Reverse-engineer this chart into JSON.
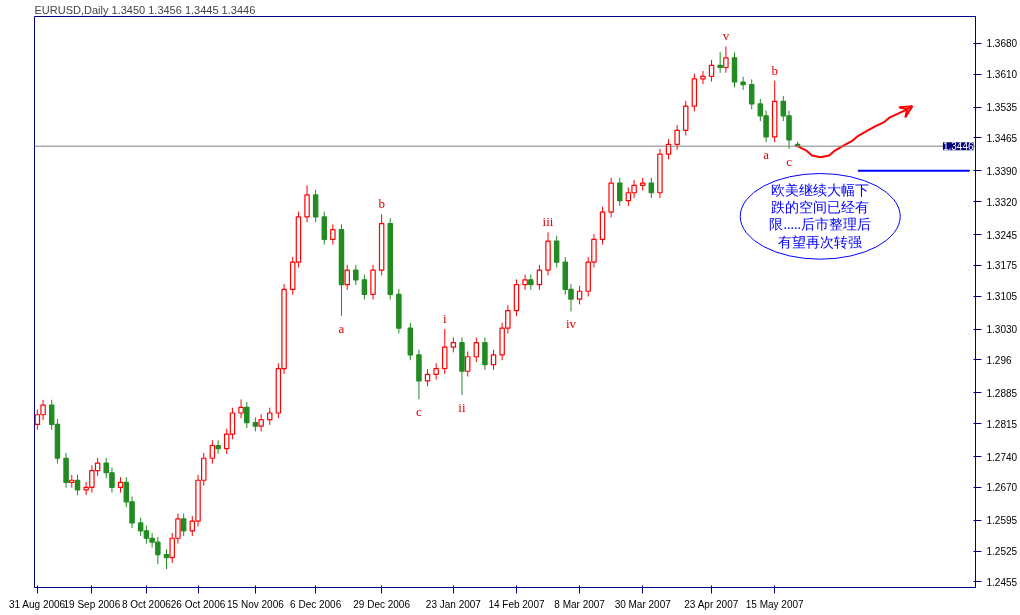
{
  "chart_data": {
    "type": "candlestick",
    "title": "EURUSD,Daily  1.3450 1.3456 1.3445 1.3446",
    "x": [
      "2006-08-31",
      "2006-09-02",
      "2006-09-05",
      "2006-09-07",
      "2006-09-10",
      "2006-09-12",
      "2006-09-14",
      "2006-09-17",
      "2006-09-19",
      "2006-09-21",
      "2006-09-24",
      "2006-09-26",
      "2006-09-29",
      "2006-10-01",
      "2006-10-03",
      "2006-10-06",
      "2006-10-08",
      "2006-10-10",
      "2006-10-12",
      "2006-10-15",
      "2006-10-17",
      "2006-10-19",
      "2006-10-21",
      "2006-10-24",
      "2006-10-26",
      "2006-10-28",
      "2006-10-31",
      "2006-11-02",
      "2006-11-05",
      "2006-11-07",
      "2006-11-10",
      "2006-11-12",
      "2006-11-15",
      "2006-11-17",
      "2006-11-20",
      "2006-11-23",
      "2006-11-25",
      "2006-11-28",
      "2006-11-30",
      "2006-12-03",
      "2006-12-06",
      "2006-12-09",
      "2006-12-12",
      "2006-12-15",
      "2006-12-17",
      "2006-12-20",
      "2006-12-23",
      "2006-12-26",
      "2006-12-29",
      "2007-01-01",
      "2007-01-04",
      "2007-01-08",
      "2007-01-11",
      "2007-01-14",
      "2007-01-17",
      "2007-01-20",
      "2007-01-23",
      "2007-01-26",
      "2007-01-28",
      "2007-01-31",
      "2007-02-03",
      "2007-02-06",
      "2007-02-09",
      "2007-02-11",
      "2007-02-14",
      "2007-02-17",
      "2007-02-19",
      "2007-02-22",
      "2007-02-25",
      "2007-02-28",
      "2007-03-03",
      "2007-03-05",
      "2007-03-08",
      "2007-03-11",
      "2007-03-13",
      "2007-03-16",
      "2007-03-19",
      "2007-03-22",
      "2007-03-25",
      "2007-03-27",
      "2007-03-30",
      "2007-04-02",
      "2007-04-05",
      "2007-04-08",
      "2007-04-11",
      "2007-04-14",
      "2007-04-17",
      "2007-04-20",
      "2007-04-23",
      "2007-04-26",
      "2007-04-28",
      "2007-05-01",
      "2007-05-04",
      "2007-05-07",
      "2007-05-10",
      "2007-05-12",
      "2007-05-15",
      "2007-05-18",
      "2007-05-20",
      "2007-05-23"
    ],
    "ohlc": [
      [
        1.2813,
        1.2847,
        1.2801,
        1.2835
      ],
      [
        1.2835,
        1.2869,
        1.2823,
        1.2857
      ],
      [
        1.2857,
        1.2869,
        1.2801,
        1.2813
      ],
      [
        1.2813,
        1.2825,
        1.2724,
        1.2736
      ],
      [
        1.2736,
        1.2748,
        1.2669,
        1.2681
      ],
      [
        1.2681,
        1.2698,
        1.2669,
        1.2686
      ],
      [
        1.2686,
        1.2698,
        1.2652,
        1.2664
      ],
      [
        1.2664,
        1.2682,
        1.2652,
        1.267
      ],
      [
        1.267,
        1.272,
        1.2658,
        1.2708
      ],
      [
        1.2708,
        1.2737,
        1.2696,
        1.2725
      ],
      [
        1.2725,
        1.2737,
        1.2691,
        1.2703
      ],
      [
        1.2703,
        1.2715,
        1.2658,
        1.267
      ],
      [
        1.267,
        1.2693,
        1.2658,
        1.2681
      ],
      [
        1.2681,
        1.2693,
        1.2625,
        1.2637
      ],
      [
        1.2637,
        1.2649,
        1.2577,
        1.2589
      ],
      [
        1.2589,
        1.2601,
        1.2559,
        1.2571
      ],
      [
        1.2571,
        1.2583,
        1.2542,
        1.2554
      ],
      [
        1.2554,
        1.2566,
        1.2533,
        1.2545
      ],
      [
        1.2545,
        1.2557,
        1.2495,
        1.2517
      ],
      [
        1.2517,
        1.2529,
        1.2484,
        1.251
      ],
      [
        1.251,
        1.2566,
        1.2498,
        1.2554
      ],
      [
        1.2554,
        1.261,
        1.2542,
        1.2598
      ],
      [
        1.2598,
        1.261,
        1.2559,
        1.2571
      ],
      [
        1.2571,
        1.2605,
        1.2559,
        1.2593
      ],
      [
        1.2593,
        1.2698,
        1.2581,
        1.2686
      ],
      [
        1.2686,
        1.2748,
        1.2674,
        1.2736
      ],
      [
        1.2736,
        1.2777,
        1.2724,
        1.2765
      ],
      [
        1.2765,
        1.2777,
        1.2746,
        1.2758
      ],
      [
        1.2758,
        1.2803,
        1.2746,
        1.2791
      ],
      [
        1.2791,
        1.2851,
        1.2779,
        1.2839
      ],
      [
        1.2839,
        1.287,
        1.2827,
        1.2852
      ],
      [
        1.2852,
        1.2864,
        1.2805,
        1.2817
      ],
      [
        1.2817,
        1.2829,
        1.2797,
        1.2809
      ],
      [
        1.2809,
        1.2836,
        1.2797,
        1.2824
      ],
      [
        1.2824,
        1.2851,
        1.2812,
        1.2839
      ],
      [
        1.2839,
        1.2952,
        1.2827,
        1.294
      ],
      [
        1.294,
        1.3132,
        1.2928,
        1.312
      ],
      [
        1.312,
        1.3194,
        1.3108,
        1.3182
      ],
      [
        1.3182,
        1.3297,
        1.317,
        1.3285
      ],
      [
        1.3285,
        1.3357,
        1.3273,
        1.3335
      ],
      [
        1.3335,
        1.3347,
        1.3273,
        1.3285
      ],
      [
        1.3285,
        1.3297,
        1.3222,
        1.3234
      ],
      [
        1.3234,
        1.3268,
        1.3222,
        1.3256
      ],
      [
        1.3256,
        1.3268,
        1.306,
        1.3131
      ],
      [
        1.3131,
        1.3176,
        1.3119,
        1.3164
      ],
      [
        1.3164,
        1.3176,
        1.313,
        1.3142
      ],
      [
        1.3142,
        1.3154,
        1.3097,
        1.3109
      ],
      [
        1.3109,
        1.3176,
        1.3097,
        1.3164
      ],
      [
        1.3164,
        1.3291,
        1.3152,
        1.327
      ],
      [
        1.327,
        1.3282,
        1.3097,
        1.3109
      ],
      [
        1.3109,
        1.3121,
        1.302,
        1.3032
      ],
      [
        1.3032,
        1.3044,
        1.2959,
        1.2971
      ],
      [
        1.2971,
        1.2983,
        1.287,
        1.2912
      ],
      [
        1.2912,
        1.2939,
        1.29,
        1.2927
      ],
      [
        1.2927,
        1.2952,
        1.2915,
        1.294
      ],
      [
        1.294,
        1.303,
        1.2928,
        1.2989
      ],
      [
        1.2989,
        1.3011,
        1.2977,
        1.2999
      ],
      [
        1.2999,
        1.3011,
        1.288,
        1.2934
      ],
      [
        1.2934,
        1.2979,
        1.2922,
        1.2967
      ],
      [
        1.2967,
        1.3011,
        1.2955,
        1.2999
      ],
      [
        1.2999,
        1.3011,
        1.2937,
        1.2949
      ],
      [
        1.2949,
        1.2983,
        1.2937,
        1.2971
      ],
      [
        1.2971,
        1.3044,
        1.2959,
        1.3032
      ],
      [
        1.3032,
        1.3084,
        1.302,
        1.3072
      ],
      [
        1.3072,
        1.3143,
        1.306,
        1.3131
      ],
      [
        1.3131,
        1.3154,
        1.3119,
        1.3142
      ],
      [
        1.3142,
        1.3154,
        1.3119,
        1.3131
      ],
      [
        1.3131,
        1.3176,
        1.3119,
        1.3164
      ],
      [
        1.3164,
        1.325,
        1.3152,
        1.323
      ],
      [
        1.323,
        1.3242,
        1.317,
        1.3182
      ],
      [
        1.3182,
        1.3194,
        1.3108,
        1.312
      ],
      [
        1.312,
        1.3132,
        1.307,
        1.3098
      ],
      [
        1.3098,
        1.3128,
        1.3086,
        1.3116
      ],
      [
        1.3116,
        1.3194,
        1.3104,
        1.3182
      ],
      [
        1.3182,
        1.3246,
        1.317,
        1.3234
      ],
      [
        1.3234,
        1.3308,
        1.3222,
        1.3296
      ],
      [
        1.3296,
        1.3374,
        1.3284,
        1.3362
      ],
      [
        1.3362,
        1.3374,
        1.331,
        1.3322
      ],
      [
        1.3322,
        1.3352,
        1.331,
        1.334
      ],
      [
        1.334,
        1.3369,
        1.3328,
        1.3357
      ],
      [
        1.3357,
        1.3374,
        1.3345,
        1.3362
      ],
      [
        1.3362,
        1.3374,
        1.3328,
        1.334
      ],
      [
        1.334,
        1.344,
        1.3328,
        1.3428
      ],
      [
        1.3428,
        1.3462,
        1.3416,
        1.345
      ],
      [
        1.345,
        1.3494,
        1.3438,
        1.3482
      ],
      [
        1.3482,
        1.3549,
        1.347,
        1.3537
      ],
      [
        1.3537,
        1.3611,
        1.3525,
        1.3599
      ],
      [
        1.3599,
        1.3617,
        1.3587,
        1.3605
      ],
      [
        1.3605,
        1.3642,
        1.3593,
        1.363
      ],
      [
        1.363,
        1.366,
        1.3613,
        1.3625
      ],
      [
        1.3625,
        1.3673,
        1.3613,
        1.3647
      ],
      [
        1.3647,
        1.3659,
        1.358,
        1.3592
      ],
      [
        1.3592,
        1.3604,
        1.3574,
        1.3586
      ],
      [
        1.3586,
        1.3598,
        1.353,
        1.3542
      ],
      [
        1.3542,
        1.3554,
        1.3503,
        1.3515
      ],
      [
        1.3515,
        1.3527,
        1.3455,
        1.3467
      ],
      [
        1.3467,
        1.3595,
        1.3455,
        1.3548
      ],
      [
        1.3548,
        1.356,
        1.3503,
        1.3515
      ],
      [
        1.3515,
        1.3527,
        1.344,
        1.346
      ],
      [
        1.345,
        1.3456,
        1.3445,
        1.3446
      ]
    ],
    "series": [
      {
        "type": "line",
        "color": "#ff0000",
        "x": [
          "2007-05-23",
          "2007-05-26",
          "2007-05-28",
          "2007-05-31",
          "2007-06-03",
          "2007-06-05",
          "2007-06-08",
          "2007-06-11",
          "2007-06-13",
          "2007-06-16",
          "2007-06-19",
          "2007-06-22",
          "2007-06-24",
          "2007-06-27",
          "2007-06-30",
          "2007-07-02"
        ],
        "values": [
          1.3446,
          1.3436,
          1.3425,
          1.3421,
          1.3425,
          1.3436,
          1.3447,
          1.3458,
          1.3469,
          1.348,
          1.3491,
          1.35,
          1.3511,
          1.352,
          1.3529,
          1.3537
        ]
      },
      {
        "type": "line",
        "color": "#0000ff",
        "x": [
          "2007-06-13",
          "2007-07-22"
        ],
        "values": [
          1.339,
          1.339
        ]
      }
    ],
    "xlim": [
      "2006-08-30",
      "2007-07-24"
    ],
    "xticks": [
      {
        "value": "2006-08-31",
        "label": "31 Aug 2006"
      },
      {
        "value": "2006-09-19",
        "label": "19 Sep 2006"
      },
      {
        "value": "2006-10-08",
        "label": "8 Oct 2006"
      },
      {
        "value": "2006-10-26",
        "label": "26 Oct 2006"
      },
      {
        "value": "2006-11-15",
        "label": "15 Nov 2006"
      },
      {
        "value": "2006-12-06",
        "label": "6 Dec 2006"
      },
      {
        "value": "2006-12-29",
        "label": "29 Dec 2006"
      },
      {
        "value": "2007-01-23",
        "label": "23 Jan 2007"
      },
      {
        "value": "2007-02-14",
        "label": "14 Feb 2007"
      },
      {
        "value": "2007-03-08",
        "label": "8 Mar 2007"
      },
      {
        "value": "2007-03-30",
        "label": "30 Mar 2007"
      },
      {
        "value": "2007-04-23",
        "label": "23 Apr 2007"
      },
      {
        "value": "2007-05-15",
        "label": "15 May 2007"
      }
    ],
    "ylim": [
      1.2442,
      1.3741
    ],
    "yticks": [
      1.2455,
      1.2525,
      1.2595,
      {
        "value": 1.267,
        "label": "1.2670"
      },
      {
        "value": 1.274,
        "label": "1.2740"
      },
      1.2815,
      1.2885,
      1.296,
      {
        "value": 1.303,
        "label": "1.3030"
      },
      1.3105,
      1.3175,
      1.3245,
      {
        "value": 1.332,
        "label": "1.3320"
      },
      {
        "value": 1.339,
        "label": "1.3390"
      },
      1.3465,
      1.3535,
      {
        "value": 1.361,
        "label": "1.3610"
      },
      {
        "value": 1.368,
        "label": "1.3680"
      }
    ],
    "ref_lines": [
      {
        "axis": "y",
        "value": 1.3446,
        "label": "1.3446",
        "color": "#808080"
      }
    ],
    "annotations": [
      {
        "text": "v",
        "x": "2007-04-28",
        "y": 1.3673
      },
      {
        "text": "b",
        "x": "2007-05-15",
        "y": 1.3595
      },
      {
        "text": "a",
        "x": "2007-05-12",
        "y": 1.3455
      },
      {
        "text": "c",
        "x": "2007-05-20",
        "y": 1.344
      },
      {
        "text": "b",
        "x": "2006-12-29",
        "y": 1.3291
      },
      {
        "text": "a",
        "x": "2006-12-15",
        "y": 1.306
      },
      {
        "text": "c",
        "x": "2007-01-11",
        "y": 1.287
      },
      {
        "text": "i",
        "x": "2007-01-20",
        "y": 1.303
      },
      {
        "text": "ii",
        "x": "2007-01-26",
        "y": 1.288
      },
      {
        "text": "iii",
        "x": "2007-02-25",
        "y": 1.325
      },
      {
        "text": "iv",
        "x": "2007-03-05",
        "y": 1.307
      },
      "欧美继续大幅下跌的空间已经有限.....后市整理后有望再次转强"
    ]
  }
}
